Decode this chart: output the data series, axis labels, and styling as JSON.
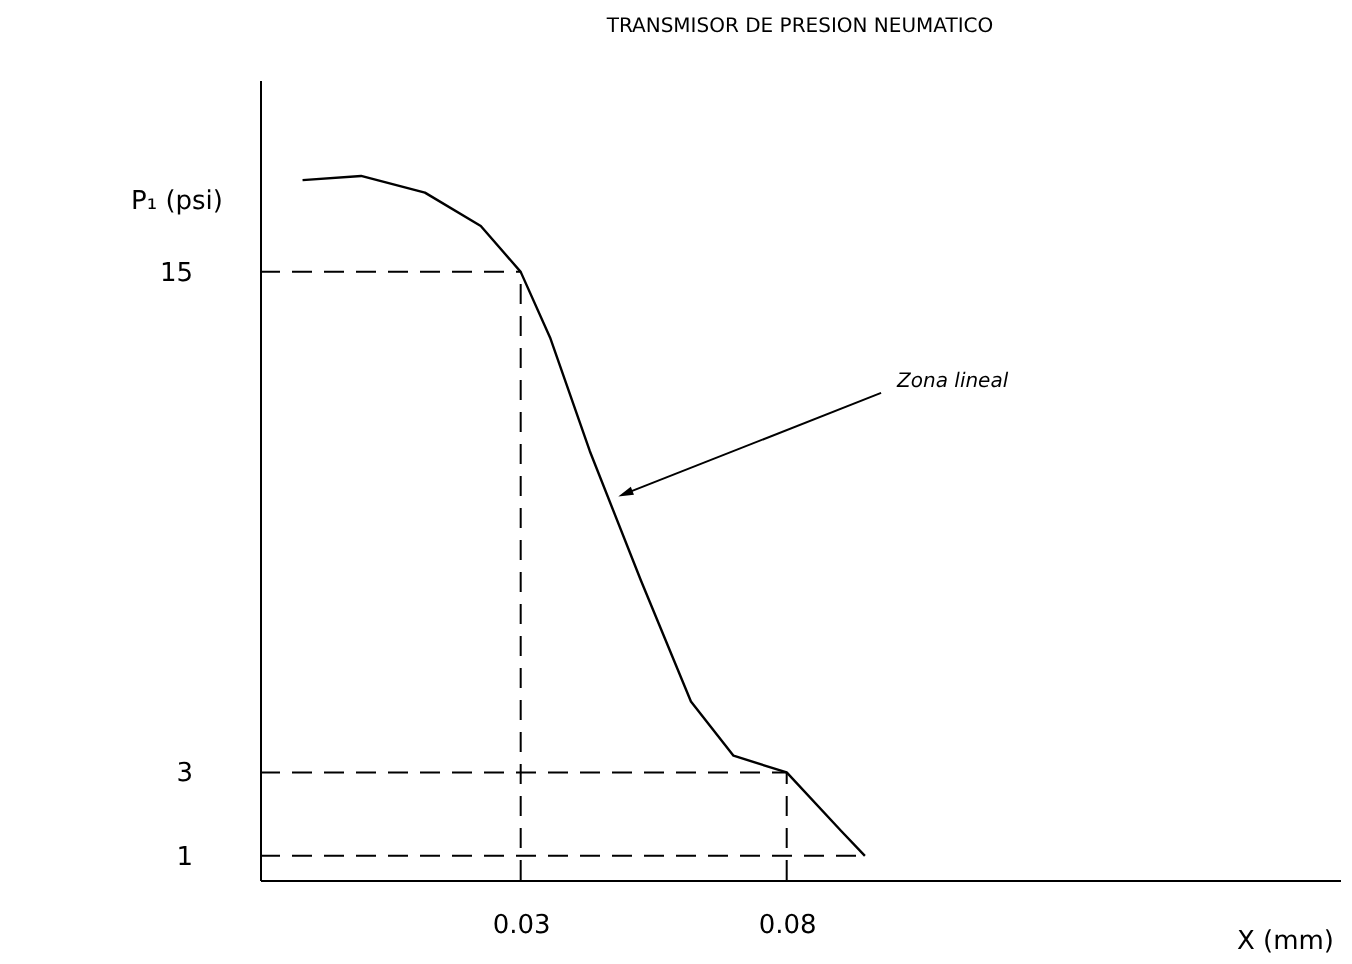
{
  "chart_data": {
    "type": "line",
    "title": "TRANSMISOR DE PRESION NEUMATICO",
    "xlabel": "X (mm)",
    "ylabel": "P₁ (psi)",
    "x": [
      -0.011,
      0.0,
      0.012,
      0.0225,
      0.03,
      0.0356,
      0.043,
      0.0526,
      0.062,
      0.07,
      0.08,
      0.0902,
      0.0947
    ],
    "series": [
      {
        "color": "#000000",
        "values": [
          17.2,
          17.3,
          16.9,
          16.1,
          15,
          13.4,
          10.7,
          7.6,
          4.7,
          3.4,
          3,
          1.6,
          1
        ]
      }
    ],
    "xlim": [
      -0.019,
      0.184
    ],
    "ylim": [
      0.42,
      19.6
    ],
    "xticks": [
      0.03,
      0.08
    ],
    "yticks": [
      1,
      3,
      15
    ],
    "marker": "none",
    "line_style": "solid",
    "ref_lines": [
      {
        "axis": "y",
        "value": 15,
        "line_style": "dashed"
      },
      {
        "axis": "y",
        "value": 3,
        "line_style": "dashed"
      },
      {
        "axis": "y",
        "value": 1,
        "line_style": "dashed"
      },
      {
        "axis": "x",
        "value": 0.03,
        "line_style": "dashed"
      },
      {
        "axis": "x",
        "value": 0.08,
        "line_style": "dashed"
      }
    ],
    "annotations": [
      {
        "text": "Zona lineal",
        "x": 0.05,
        "y": 9.7
      }
    ]
  }
}
